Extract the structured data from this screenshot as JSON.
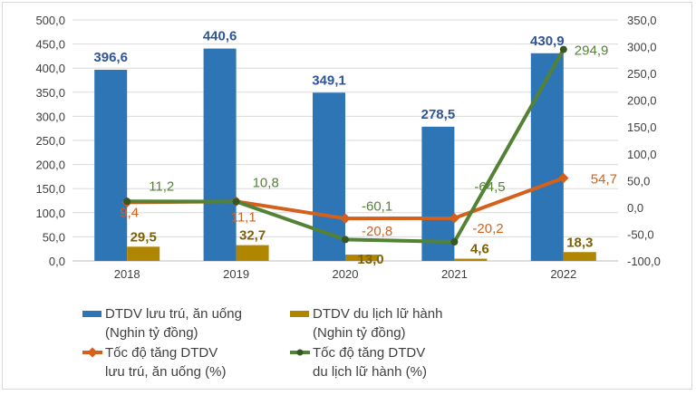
{
  "chart_data": {
    "type": "bar+line",
    "categories": [
      "2018",
      "2019",
      "2020",
      "2021",
      "2022"
    ],
    "left_axis": {
      "ylim": [
        0,
        500
      ],
      "ticks": [
        "0,0",
        "50,0",
        "100,0",
        "150,0",
        "200,0",
        "250,0",
        "300,0",
        "350,0",
        "400,0",
        "450,0",
        "500,0"
      ]
    },
    "right_axis": {
      "ylim": [
        -100,
        350
      ],
      "ticks": [
        "-100,0",
        "-50,0",
        "0,0",
        "50,0",
        "100,0",
        "150,0",
        "200,0",
        "250,0",
        "300,0",
        "350,0"
      ]
    },
    "grid": true,
    "legend_placement": "bottom",
    "series": [
      {
        "name": "DTDV lưu trú, ăn uống (Nghin tỷ đồng)",
        "legend_lines": [
          "DTDV lưu trú, ăn uống",
          "(Nghin tỷ đồng)"
        ],
        "type": "bar",
        "axis": "left",
        "color": "#2e75b6",
        "values": [
          396.6,
          440.6,
          349.1,
          278.5,
          430.9
        ],
        "labels": [
          "396,6",
          "440,6",
          "349,1",
          "278,5",
          "430,9"
        ]
      },
      {
        "name": "DTDV du lịch lữ hành (Nghin tỷ đồng)",
        "legend_lines": [
          "DTDV du lịch lữ hành",
          "(Nghin tỷ đồng)"
        ],
        "type": "bar",
        "axis": "left",
        "color": "#b08600",
        "values": [
          29.5,
          32.7,
          13.0,
          4.6,
          18.3
        ],
        "labels": [
          "29,5",
          "32,7",
          "13,0",
          "4,6",
          "18,3"
        ]
      },
      {
        "name": "Tốc độ tăng DTDV lưu trú, ăn uống (%)",
        "legend_lines": [
          "Tốc độ tăng DTDV",
          "lưu trú, ăn uống (%)"
        ],
        "type": "line",
        "axis": "right",
        "color": "#d4601c",
        "values": [
          9.4,
          11.1,
          -20.8,
          -20.2,
          54.7
        ],
        "labels": [
          "9,4",
          "11,1",
          "-20,8",
          "-20,2",
          "54,7"
        ]
      },
      {
        "name": "Tốc độ tăng DTDV du lịch lữ hành (%)",
        "legend_lines": [
          "Tốc độ tăng DTDV",
          "du lịch lữ hành (%)"
        ],
        "type": "line",
        "axis": "right",
        "color": "#548235",
        "values": [
          11.2,
          10.8,
          -60.1,
          -64.5,
          294.9
        ],
        "labels": [
          "11,2",
          "10,8",
          "-60,1",
          "-64,5",
          "294,9"
        ]
      }
    ]
  }
}
